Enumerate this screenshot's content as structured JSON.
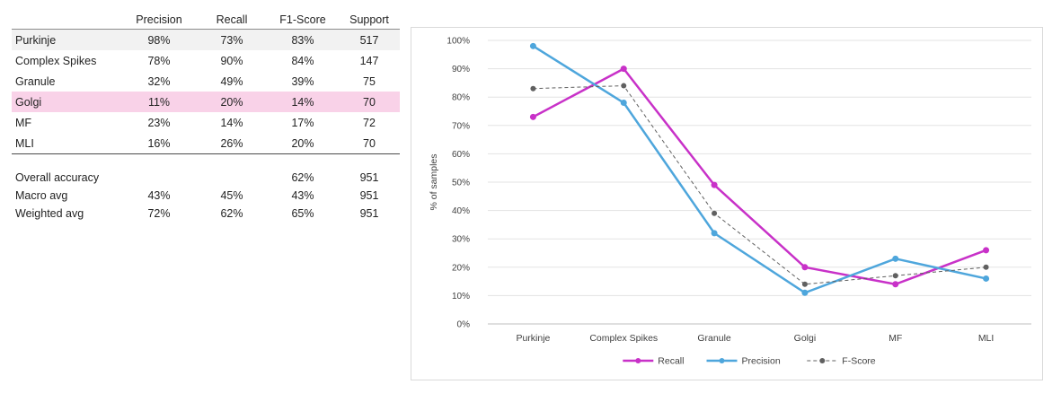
{
  "table": {
    "headers": [
      "",
      "Precision",
      "Recall",
      "F1-Score",
      "Support"
    ],
    "rows": [
      {
        "label": "Purkinje",
        "precision": "98%",
        "recall": "73%",
        "f1": "83%",
        "support": "517"
      },
      {
        "label": "Complex Spikes",
        "precision": "78%",
        "recall": "90%",
        "f1": "84%",
        "support": "147"
      },
      {
        "label": "Granule",
        "precision": "32%",
        "recall": "49%",
        "f1": "39%",
        "support": "75"
      },
      {
        "label": "Golgi",
        "precision": "11%",
        "recall": "20%",
        "f1": "14%",
        "support": "70"
      },
      {
        "label": "MF",
        "precision": "23%",
        "recall": "14%",
        "f1": "17%",
        "support": "72"
      },
      {
        "label": "MLI",
        "precision": "16%",
        "recall": "26%",
        "f1": "20%",
        "support": "70"
      }
    ],
    "summary": [
      {
        "label": "Overall accuracy",
        "precision": "",
        "recall": "",
        "f1": "62%",
        "support": "951"
      },
      {
        "label": "Macro avg",
        "precision": "43%",
        "recall": "45%",
        "f1": "43%",
        "support": "951"
      },
      {
        "label": "Weighted avg",
        "precision": "72%",
        "recall": "62%",
        "f1": "65%",
        "support": "951"
      }
    ],
    "highlight_color": "#f9d2e8",
    "shade_color": "#f2f2f2"
  },
  "chart_data": {
    "type": "line",
    "title": "",
    "xlabel": "",
    "ylabel": "% of samples",
    "categories": [
      "Purkinje",
      "Complex Spikes",
      "Granule",
      "Golgi",
      "MF",
      "MLI"
    ],
    "ylim": [
      0,
      100
    ],
    "yticks": [
      "0%",
      "10%",
      "20%",
      "30%",
      "40%",
      "50%",
      "60%",
      "70%",
      "80%",
      "90%",
      "100%"
    ],
    "grid": true,
    "legend_position": "bottom",
    "series": [
      {
        "name": "Recall",
        "values": [
          73,
          90,
          49,
          20,
          14,
          26
        ],
        "color": "#c831c8",
        "style": "solid"
      },
      {
        "name": "Precision",
        "values": [
          98,
          78,
          32,
          11,
          23,
          16
        ],
        "color": "#4ea6dc",
        "style": "solid"
      },
      {
        "name": "F-Score",
        "values": [
          83,
          84,
          39,
          14,
          17,
          20
        ],
        "color": "#606060",
        "style": "dashed"
      }
    ]
  }
}
